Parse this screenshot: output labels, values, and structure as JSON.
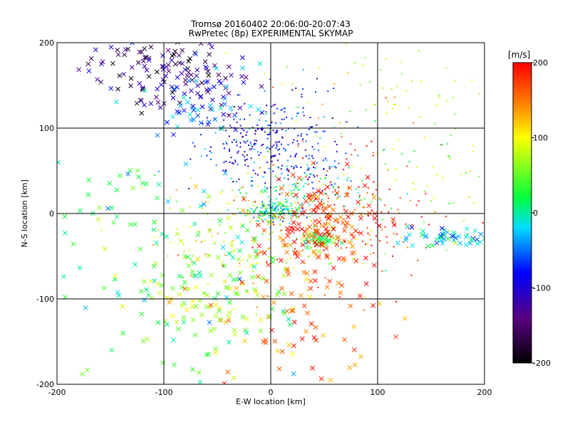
{
  "chart_data": {
    "type": "scatter",
    "title": "Tromsø 20160402 20:06:00-20:07:43",
    "subtitle": "RwPretec (8p) EXPERIMENTAL SKYMAP",
    "xlabel": "E-W location [km]",
    "ylabel": "N-S location [km]",
    "xlim": [
      -200,
      200
    ],
    "ylim": [
      -200,
      200
    ],
    "x_ticks": [
      "-200",
      "-100",
      "0",
      "100",
      "200"
    ],
    "y_ticks": [
      "-200",
      "-100",
      "0",
      "100",
      "200"
    ],
    "grid": true,
    "colorbar": {
      "label": "[m/s]",
      "range": [
        -200,
        200
      ],
      "ticks": [
        "-200",
        "-100",
        "0",
        "100",
        "200"
      ],
      "colormap": "rainbow (black-purple-blue-cyan-green-yellow-red)"
    },
    "marker_types": [
      "x",
      "dot"
    ],
    "clusters": [
      {
        "x": -110,
        "y": 170,
        "sx": 35,
        "sy": 20,
        "v": -150,
        "n": 90,
        "marker": "x"
      },
      {
        "x": -60,
        "y": 150,
        "sx": 30,
        "sy": 25,
        "v": -110,
        "n": 60,
        "marker": "x"
      },
      {
        "x": -20,
        "y": 80,
        "sx": 25,
        "sy": 20,
        "v": -90,
        "n": 160,
        "marker": "dot"
      },
      {
        "x": 10,
        "y": 110,
        "sx": 30,
        "sy": 25,
        "v": -80,
        "n": 90,
        "marker": "dot"
      },
      {
        "x": 30,
        "y": 55,
        "sx": 25,
        "sy": 15,
        "v": -60,
        "n": 80,
        "marker": "dot"
      },
      {
        "x": -70,
        "y": 120,
        "sx": 25,
        "sy": 15,
        "v": -60,
        "n": 40,
        "marker": "x"
      },
      {
        "x": 30,
        "y": 25,
        "sx": 30,
        "sy": 12,
        "v": 10,
        "n": 90,
        "marker": "dot"
      },
      {
        "x": 5,
        "y": 3,
        "sx": 12,
        "sy": 6,
        "v": 5,
        "n": 180,
        "marker": "dot"
      },
      {
        "x": 45,
        "y": -30,
        "sx": 8,
        "sy": 6,
        "v": 30,
        "n": 40,
        "marker": "x"
      },
      {
        "x": 50,
        "y": -15,
        "sx": 25,
        "sy": 25,
        "v": 180,
        "n": 150,
        "marker": "x"
      },
      {
        "x": 70,
        "y": 0,
        "sx": 45,
        "sy": 40,
        "v": 170,
        "n": 170,
        "marker": "dot"
      },
      {
        "x": 170,
        "y": -28,
        "sx": 20,
        "sy": 6,
        "v": -20,
        "n": 50,
        "marker": "x"
      },
      {
        "x": -50,
        "y": -80,
        "sx": 40,
        "sy": 45,
        "v": 60,
        "n": 140,
        "marker": "x"
      },
      {
        "x": 30,
        "y": -120,
        "sx": 35,
        "sy": 40,
        "v": 160,
        "n": 80,
        "marker": "x"
      },
      {
        "x": -130,
        "y": -10,
        "sx": 50,
        "sy": 50,
        "v": 0,
        "n": 60,
        "marker": "x"
      },
      {
        "x": 140,
        "y": 40,
        "sx": 40,
        "sy": 50,
        "v": 60,
        "n": 70,
        "marker": "dot"
      },
      {
        "x": -20,
        "y": -30,
        "sx": 45,
        "sy": 40,
        "v": 90,
        "n": 150,
        "marker": "dot"
      },
      {
        "x": -100,
        "y": -140,
        "sx": 50,
        "sy": 40,
        "v": 50,
        "n": 40,
        "marker": "x"
      },
      {
        "x": 100,
        "y": 150,
        "sx": 60,
        "sy": 30,
        "v": 80,
        "n": 60,
        "marker": "dot"
      }
    ]
  }
}
